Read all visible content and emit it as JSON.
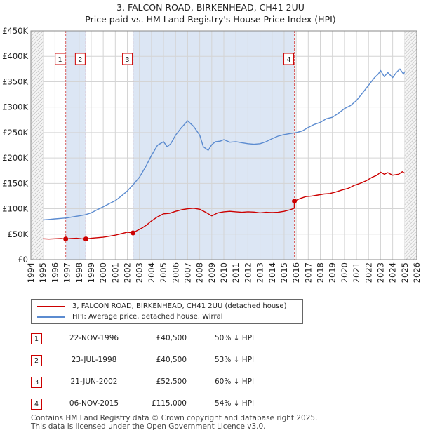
{
  "title_line1": "3, FALCON ROAD, BIRKENHEAD, CH41 2UU",
  "title_line2": "Price paid vs. HM Land Registry's House Price Index (HPI)",
  "colors": {
    "price": "#cc0000",
    "hpi": "#5b8bd0",
    "shade": "#dce6f4",
    "grid": "#d4d4d4"
  },
  "chart_data": {
    "type": "line",
    "title": "3, FALCON ROAD, BIRKENHEAD, CH41 2UU — Price paid vs. HM Land Registry's House Price Index (HPI)",
    "xlim": [
      1994,
      2026
    ],
    "ylim": [
      0,
      450000
    ],
    "x_ticks": [
      1994,
      1995,
      1996,
      1997,
      1998,
      1999,
      2000,
      2001,
      2002,
      2003,
      2004,
      2005,
      2006,
      2007,
      2008,
      2009,
      2010,
      2011,
      2012,
      2013,
      2014,
      2015,
      2016,
      2017,
      2018,
      2019,
      2020,
      2021,
      2022,
      2023,
      2024,
      2025,
      2026
    ],
    "y_ticks": [
      {
        "value": 0,
        "label": "£0"
      },
      {
        "value": 50000,
        "label": "£50K"
      },
      {
        "value": 100000,
        "label": "£100K"
      },
      {
        "value": 150000,
        "label": "£150K"
      },
      {
        "value": 200000,
        "label": "£200K"
      },
      {
        "value": 250000,
        "label": "£250K"
      },
      {
        "value": 300000,
        "label": "£300K"
      },
      {
        "value": 350000,
        "label": "£350K"
      },
      {
        "value": 400000,
        "label": "£400K"
      },
      {
        "value": 450000,
        "label": "£450K"
      }
    ],
    "data_range": [
      1995,
      2025
    ],
    "shaded_spans": [
      [
        1996.89,
        1998.56
      ],
      [
        2002.47,
        2015.85
      ]
    ],
    "series": [
      {
        "name": "3, FALCON ROAD, BIRKENHEAD, CH41 2UU (detached house)",
        "color": "#cc0000",
        "x": [
          1995.0,
          1995.5,
          1996.0,
          1996.5,
          1996.89,
          1997.3,
          1997.8,
          1998.2,
          1998.56,
          1999.0,
          1999.5,
          2000.0,
          2000.5,
          2001.0,
          2001.5,
          2002.0,
          2002.47,
          2002.8,
          2003.2,
          2003.6,
          2004.0,
          2004.5,
          2005.0,
          2005.5,
          2006.0,
          2006.5,
          2007.0,
          2007.5,
          2008.0,
          2008.5,
          2009.0,
          2009.5,
          2010.0,
          2010.5,
          2011.0,
          2011.5,
          2012.0,
          2012.5,
          2013.0,
          2013.5,
          2014.0,
          2014.5,
          2015.0,
          2015.5,
          2015.84,
          2015.85,
          2016.3,
          2016.8,
          2017.3,
          2017.8,
          2018.3,
          2018.8,
          2019.3,
          2019.8,
          2020.3,
          2020.8,
          2021.3,
          2021.8,
          2022.3,
          2022.7,
          2023.0,
          2023.3,
          2023.6,
          2024.0,
          2024.5,
          2024.8,
          2025.0
        ],
        "y": [
          41000,
          40500,
          41000,
          41500,
          40500,
          41500,
          42000,
          41000,
          40500,
          42000,
          43000,
          44000,
          46000,
          48000,
          51000,
          54000,
          52500,
          57000,
          62000,
          68000,
          76000,
          84000,
          90000,
          91000,
          95000,
          98000,
          100000,
          101000,
          99000,
          93000,
          86000,
          92000,
          94000,
          95000,
          94000,
          93000,
          94000,
          93500,
          92000,
          93000,
          92500,
          93000,
          95000,
          98000,
          101000,
          115000,
          120000,
          124000,
          125000,
          127000,
          129000,
          130000,
          133000,
          137000,
          140000,
          146000,
          150000,
          155000,
          162000,
          166000,
          172000,
          168000,
          171000,
          166000,
          168000,
          173000,
          170000
        ]
      },
      {
        "name": "HPI: Average price, detached house, Wirral",
        "color": "#5b8bd0",
        "x": [
          1995.0,
          1995.5,
          1996.0,
          1996.5,
          1997.0,
          1997.5,
          1998.0,
          1998.5,
          1999.0,
          1999.5,
          2000.0,
          2000.5,
          2001.0,
          2001.5,
          2002.0,
          2002.5,
          2003.0,
          2003.5,
          2004.0,
          2004.5,
          2005.0,
          2005.3,
          2005.6,
          2006.0,
          2006.5,
          2007.0,
          2007.5,
          2008.0,
          2008.3,
          2008.7,
          2009.0,
          2009.3,
          2009.7,
          2010.0,
          2010.5,
          2011.0,
          2011.5,
          2012.0,
          2012.5,
          2013.0,
          2013.5,
          2014.0,
          2014.5,
          2015.0,
          2015.5,
          2016.0,
          2016.5,
          2017.0,
          2017.5,
          2018.0,
          2018.5,
          2019.0,
          2019.5,
          2020.0,
          2020.5,
          2021.0,
          2021.5,
          2022.0,
          2022.5,
          2022.8,
          2023.0,
          2023.3,
          2023.6,
          2024.0,
          2024.3,
          2024.6,
          2024.9,
          2025.0
        ],
        "y": [
          78000,
          79000,
          80000,
          81000,
          82000,
          84000,
          86000,
          88000,
          92000,
          98000,
          104000,
          110000,
          116000,
          125000,
          135000,
          148000,
          162000,
          182000,
          205000,
          225000,
          232000,
          222000,
          228000,
          245000,
          260000,
          273000,
          262000,
          245000,
          222000,
          215000,
          226000,
          232000,
          233000,
          236000,
          231000,
          232000,
          230000,
          228000,
          227000,
          228000,
          232000,
          238000,
          243000,
          246000,
          248000,
          250000,
          253000,
          260000,
          266000,
          270000,
          277000,
          280000,
          288000,
          297000,
          303000,
          313000,
          328000,
          343000,
          358000,
          365000,
          372000,
          360000,
          368000,
          358000,
          368000,
          375000,
          365000,
          370000
        ]
      }
    ],
    "markers": [
      {
        "id": "1",
        "x": 1996.89,
        "price": 40500
      },
      {
        "id": "2",
        "x": 1998.56,
        "price": 40500
      },
      {
        "id": "3",
        "x": 2002.47,
        "price": 52500
      },
      {
        "id": "4",
        "x": 2015.85,
        "price": 115000
      }
    ]
  },
  "legend": {
    "price_label": "3, FALCON ROAD, BIRKENHEAD, CH41 2UU (detached house)",
    "hpi_label": "HPI: Average price, detached house, Wirral"
  },
  "sales": [
    {
      "num": "1",
      "date": "22-NOV-1996",
      "price": "£40,500",
      "hpi": "50% ↓ HPI"
    },
    {
      "num": "2",
      "date": "23-JUL-1998",
      "price": "£40,500",
      "hpi": "53% ↓ HPI"
    },
    {
      "num": "3",
      "date": "21-JUN-2002",
      "price": "£52,500",
      "hpi": "60% ↓ HPI"
    },
    {
      "num": "4",
      "date": "06-NOV-2015",
      "price": "£115,000",
      "hpi": "54% ↓ HPI"
    }
  ],
  "footer": {
    "line1": "Contains HM Land Registry data © Crown copyright and database right 2025.",
    "line2": "This data is licensed under the Open Government Licence v3.0."
  }
}
